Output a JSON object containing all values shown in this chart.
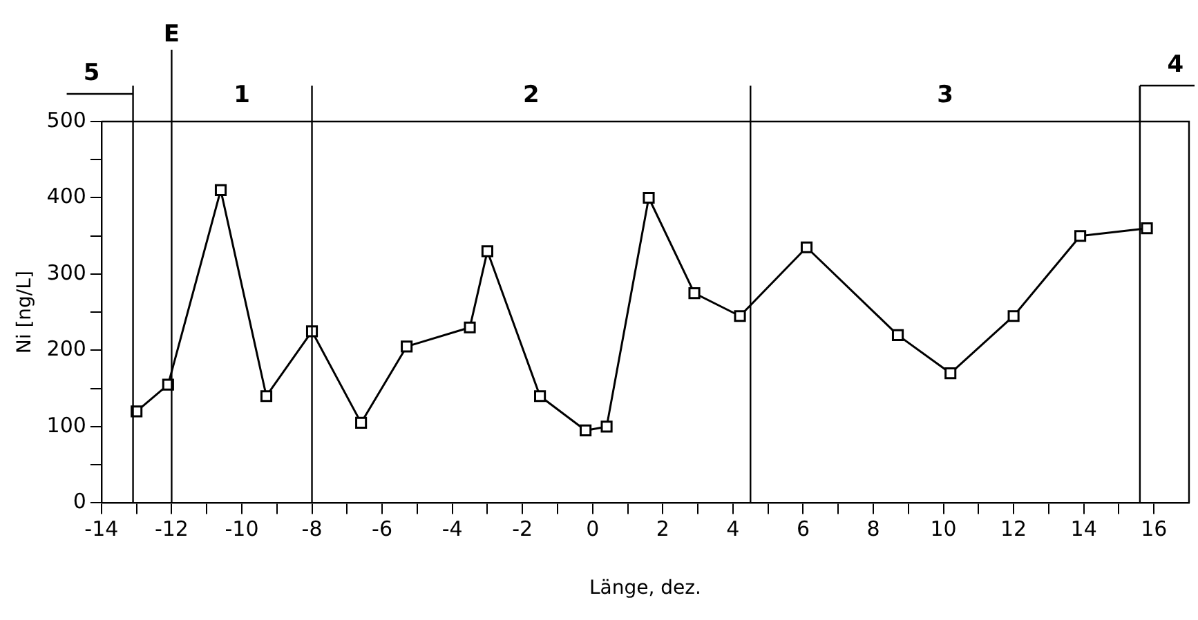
{
  "chart_data": {
    "type": "line",
    "xlabel": "Länge, dez.",
    "ylabel": "Ni [ng/L]",
    "series": [
      {
        "color": "#000000",
        "x": [
          -13.0,
          -12.1,
          -10.6,
          -9.3,
          -8.0,
          -6.6,
          -5.3,
          -3.5,
          -3.0,
          -1.5,
          -0.2,
          0.4,
          1.6,
          2.9,
          4.2,
          6.1,
          8.7,
          10.2,
          12.0,
          13.9,
          15.8
        ],
        "values": [
          120,
          155,
          410,
          140,
          225,
          105,
          205,
          230,
          330,
          140,
          95,
          100,
          400,
          275,
          245,
          335,
          220,
          170,
          245,
          350,
          360
        ]
      }
    ],
    "marker": "square",
    "line_style": "solid",
    "grid": false,
    "legend": false,
    "xlim": [
      -14,
      17
    ],
    "ylim": [
      0,
      500
    ],
    "xticks": [
      -14,
      {
        "value": -13,
        "label": null
      },
      -12,
      {
        "value": -11,
        "label": null
      },
      -10,
      {
        "value": -9,
        "label": null
      },
      -8,
      {
        "value": -7,
        "label": null
      },
      -6,
      {
        "value": -5,
        "label": null
      },
      -4,
      {
        "value": -3,
        "label": null
      },
      -2,
      {
        "value": -1,
        "label": null
      },
      0,
      {
        "value": 1,
        "label": null
      },
      2,
      {
        "value": 3,
        "label": null
      },
      4,
      {
        "value": 5,
        "label": null
      },
      6,
      {
        "value": 7,
        "label": null
      },
      8,
      {
        "value": 9,
        "label": null
      },
      10,
      {
        "value": 11,
        "label": null
      },
      12,
      {
        "value": 13,
        "label": null
      },
      14,
      {
        "value": 15,
        "label": null
      },
      16
    ],
    "yticks": [
      0,
      {
        "value": 50,
        "label": null
      },
      100,
      {
        "value": 150,
        "label": null
      },
      200,
      {
        "value": 250,
        "label": null
      },
      300,
      {
        "value": 350,
        "label": null
      },
      400,
      {
        "value": 450,
        "label": null
      },
      500
    ],
    "ref_lines": [
      {
        "axis": "x",
        "value": -13.1,
        "label": null
      },
      {
        "axis": "x",
        "value": -12,
        "label": "E"
      },
      {
        "axis": "x",
        "value": -8,
        "label": null
      },
      {
        "axis": "x",
        "value": 4.5,
        "label": null
      },
      {
        "axis": "x",
        "value": 15.6,
        "label": null
      }
    ],
    "annotations": [
      "5",
      "1",
      "2",
      "3",
      "4"
    ]
  }
}
